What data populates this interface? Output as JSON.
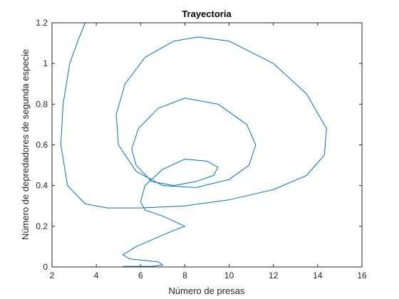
{
  "chart_data": {
    "type": "line",
    "title": "Trayectoria",
    "x_label": "Número de presas",
    "y_label": "Número de depredadores de segunda especie",
    "xlim": [
      2,
      16
    ],
    "ylim": [
      0,
      1.2
    ],
    "xticks": [
      2,
      4,
      6,
      8,
      10,
      12,
      14,
      16
    ],
    "yticks": [
      0,
      0.2,
      0.4,
      0.6,
      0.8,
      1,
      1.2
    ],
    "grid": false,
    "series": [
      {
        "color": "#0072bd",
        "x": [
          5.2,
          6.5,
          7.0,
          6.8,
          5.5,
          5.2,
          5.8,
          7.5,
          8.0,
          7.0,
          6.2,
          6.0,
          6.2,
          7.0,
          8.0,
          9.0,
          9.5,
          9.3,
          8.5,
          7.5,
          6.5,
          5.8,
          5.6,
          5.9,
          6.8,
          8.0,
          9.5,
          10.8,
          11.2,
          10.9,
          10.0,
          8.5,
          7.0,
          5.8,
          5.0,
          4.9,
          5.3,
          6.2,
          7.5,
          8.6,
          10.0,
          12.0,
          13.5,
          14.4,
          14.3,
          13.5,
          12.0,
          10.0,
          8.0,
          6.0,
          4.5,
          3.5,
          2.7,
          2.4,
          2.5,
          2.8,
          3.2,
          3.5
        ],
        "values": [
          0.003,
          0.003,
          0.01,
          0.025,
          0.04,
          0.06,
          0.1,
          0.18,
          0.2,
          0.25,
          0.28,
          0.32,
          0.4,
          0.48,
          0.53,
          0.52,
          0.49,
          0.45,
          0.42,
          0.4,
          0.42,
          0.5,
          0.58,
          0.68,
          0.78,
          0.83,
          0.8,
          0.7,
          0.6,
          0.5,
          0.43,
          0.39,
          0.4,
          0.47,
          0.6,
          0.75,
          0.9,
          1.03,
          1.11,
          1.13,
          1.11,
          1.0,
          0.85,
          0.68,
          0.55,
          0.45,
          0.38,
          0.33,
          0.3,
          0.29,
          0.29,
          0.31,
          0.4,
          0.6,
          0.8,
          1.0,
          1.12,
          1.2
        ]
      }
    ]
  }
}
